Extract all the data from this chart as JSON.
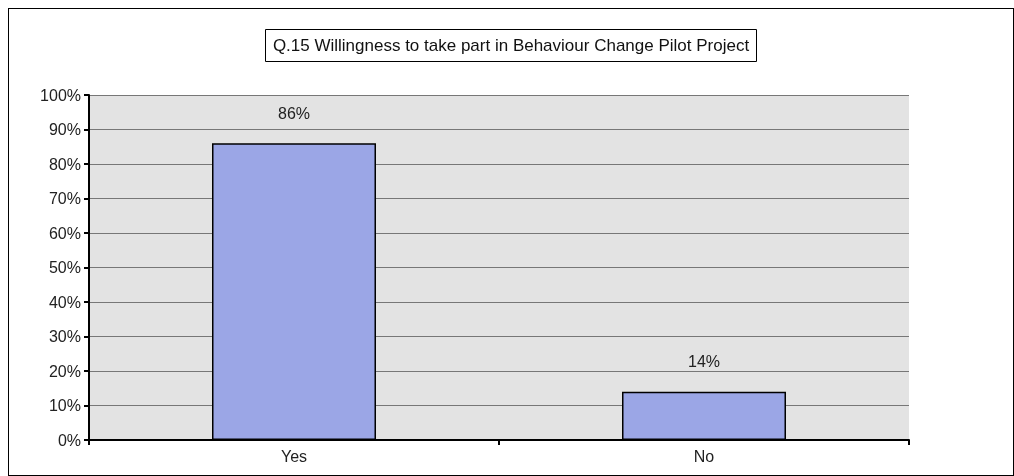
{
  "chart_data": {
    "type": "bar",
    "title": "Q.15 Willingness to take part in Behaviour Change Pilot Project",
    "categories": [
      "Yes",
      "No"
    ],
    "values": [
      86,
      14
    ],
    "value_labels": [
      "86%",
      "14%"
    ],
    "color": "#9ba6e6",
    "ylim": [
      0,
      100
    ],
    "yticks": [
      {
        "value": 0,
        "label": "0%"
      },
      {
        "value": 10,
        "label": "10%"
      },
      {
        "value": 20,
        "label": "20%"
      },
      {
        "value": 30,
        "label": "30%"
      },
      {
        "value": 40,
        "label": "40%"
      },
      {
        "value": 50,
        "label": "50%"
      },
      {
        "value": 60,
        "label": "60%"
      },
      {
        "value": 70,
        "label": "70%"
      },
      {
        "value": 80,
        "label": "80%"
      },
      {
        "value": 90,
        "label": "90%"
      },
      {
        "value": 100,
        "label": "100%"
      }
    ],
    "grid": true
  }
}
